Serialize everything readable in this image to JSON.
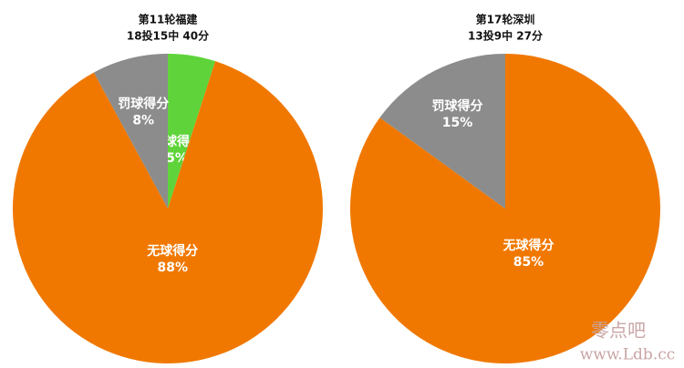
{
  "chart_data": [
    {
      "type": "pie",
      "title": "第11轮福建",
      "subtitle": "18投15中 40分",
      "categories": [
        "持球得分",
        "无球得分",
        "罚球得分"
      ],
      "values": [
        5,
        88,
        8
      ],
      "value_labels": [
        "5%",
        "88%",
        "8%"
      ],
      "colors": [
        "#5fd43a",
        "#f07800",
        "#8c8c8c"
      ]
    },
    {
      "type": "pie",
      "title": "第17轮深圳",
      "subtitle": "13投9中 27分",
      "categories": [
        "无球得分",
        "罚球得分"
      ],
      "values": [
        85,
        15
      ],
      "value_labels": [
        "85%",
        "15%"
      ],
      "colors": [
        "#f07800",
        "#8c8c8c"
      ]
    }
  ],
  "watermark": {
    "name": "零点吧",
    "url": "www.Ldb.cc"
  }
}
